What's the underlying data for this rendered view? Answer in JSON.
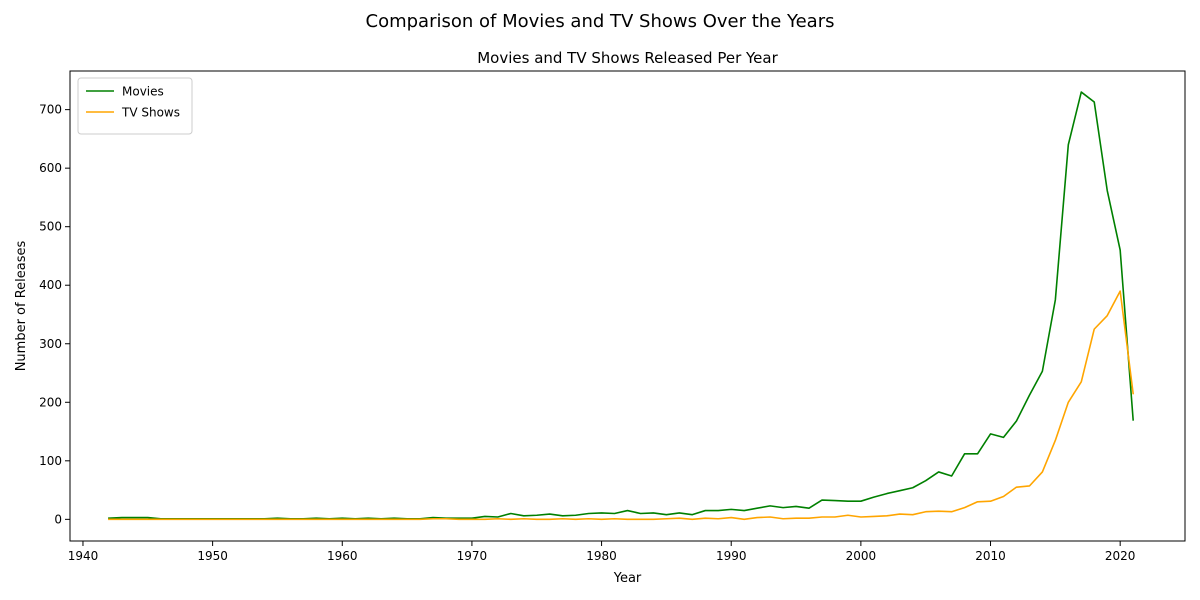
{
  "figure": {
    "suptitle": "Comparison of Movies and TV Shows Over the Years"
  },
  "chart_data": {
    "type": "line",
    "title": "Movies and TV Shows Released Per Year",
    "xlabel": "Year",
    "ylabel": "Number of Releases",
    "xlim": [
      1939,
      2025
    ],
    "ylim": [
      -37,
      766
    ],
    "xticks": [
      1940,
      1950,
      1960,
      1970,
      1980,
      1990,
      2000,
      2010,
      2020
    ],
    "yticks": [
      0,
      100,
      200,
      300,
      400,
      500,
      600,
      700
    ],
    "grid": false,
    "legend": "top-left",
    "x": [
      1942,
      1943,
      1944,
      1945,
      1946,
      1947,
      1948,
      1949,
      1950,
      1951,
      1952,
      1953,
      1954,
      1955,
      1956,
      1957,
      1958,
      1959,
      1960,
      1961,
      1962,
      1963,
      1964,
      1965,
      1966,
      1967,
      1968,
      1969,
      1970,
      1971,
      1972,
      1973,
      1974,
      1975,
      1976,
      1977,
      1978,
      1979,
      1980,
      1981,
      1982,
      1983,
      1984,
      1985,
      1986,
      1987,
      1988,
      1989,
      1990,
      1991,
      1992,
      1993,
      1994,
      1995,
      1996,
      1997,
      1998,
      1999,
      2000,
      2001,
      2002,
      2003,
      2004,
      2005,
      2006,
      2007,
      2008,
      2009,
      2010,
      2011,
      2012,
      2013,
      2014,
      2015,
      2016,
      2017,
      2018,
      2019,
      2020,
      2021
    ],
    "series": [
      {
        "name": "Movies",
        "color": "#008000",
        "values": [
          2,
          3,
          3,
          3,
          1,
          1,
          1,
          1,
          1,
          1,
          1,
          1,
          1,
          2,
          1,
          1,
          2,
          1,
          2,
          1,
          2,
          1,
          2,
          1,
          1,
          3,
          2,
          2,
          2,
          5,
          4,
          10,
          6,
          7,
          9,
          6,
          7,
          10,
          11,
          10,
          15,
          10,
          11,
          8,
          11,
          8,
          15,
          15,
          17,
          15,
          19,
          23,
          20,
          22,
          19,
          33,
          32,
          31,
          31,
          38,
          44,
          49,
          54,
          66,
          81,
          74,
          112,
          112,
          146,
          140,
          168,
          212,
          253,
          375,
          640,
          730,
          713,
          562,
          460,
          170
        ]
      },
      {
        "name": "TV Shows",
        "color": "#FFA500",
        "values": [
          0,
          0,
          0,
          0,
          0,
          0,
          0,
          0,
          0,
          0,
          0,
          0,
          0,
          0,
          0,
          0,
          0,
          0,
          0,
          0,
          0,
          0,
          0,
          0,
          0,
          1,
          1,
          0,
          0,
          0,
          1,
          0,
          1,
          0,
          0,
          1,
          0,
          1,
          0,
          1,
          0,
          0,
          0,
          1,
          2,
          0,
          2,
          1,
          3,
          0,
          3,
          4,
          1,
          2,
          2,
          4,
          4,
          7,
          4,
          5,
          6,
          9,
          8,
          13,
          14,
          13,
          20,
          30,
          31,
          39,
          55,
          57,
          81,
          135,
          200,
          235,
          325,
          348,
          390,
          215
        ]
      }
    ]
  }
}
